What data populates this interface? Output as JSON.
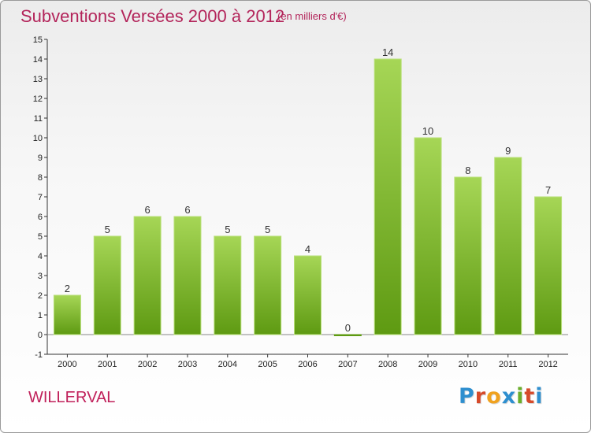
{
  "header": {
    "title": "Subventions Versées 2000 à 2012",
    "unit": "(en milliers d'€)"
  },
  "footer": {
    "commune": "WILLERVAL",
    "logo": {
      "letters": [
        "P",
        "r",
        "o",
        "x",
        "i",
        "t",
        "i"
      ],
      "colors": [
        "#2e8fcf",
        "#d64a2a",
        "#f0a21f",
        "#2e8fcf",
        "#6aae2a",
        "#d64a2a",
        "#2e8fcf"
      ]
    }
  },
  "colors": {
    "bar_light": "#a6d656",
    "bar_dark": "#5e9a12",
    "axis": "#333333",
    "title": "#b3245a"
  },
  "chart_data": {
    "type": "bar",
    "title": "Subventions Versées 2000 à 2012",
    "ylabel": "",
    "xlabel": "",
    "categories": [
      "2000",
      "2001",
      "2002",
      "2003",
      "2004",
      "2005",
      "2006",
      "2007",
      "2008",
      "2009",
      "2010",
      "2011",
      "2012"
    ],
    "values": [
      2,
      5,
      6,
      6,
      5,
      5,
      4,
      0,
      14,
      10,
      8,
      9,
      7
    ],
    "ylim": [
      -1,
      15
    ],
    "yticks": [
      -1,
      0,
      1,
      2,
      3,
      4,
      5,
      6,
      7,
      8,
      9,
      10,
      11,
      12,
      13,
      14,
      15
    ],
    "grid": false,
    "legend": "none"
  }
}
